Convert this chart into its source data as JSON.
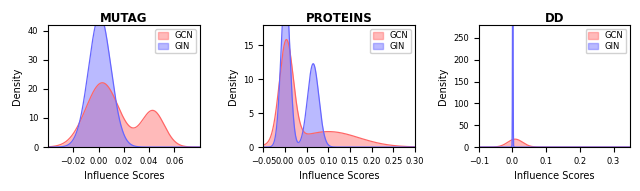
{
  "titles": [
    "MUTAG",
    "PROTEINS",
    "DD"
  ],
  "xlabel": "Influence Scores",
  "ylabel": "Density",
  "gcn_color": "#FF6666",
  "gin_color": "#6666FF",
  "gcn_alpha": 0.45,
  "gin_alpha": 0.45,
  "plots": [
    {
      "title": "MUTAG",
      "xlim": [
        -0.04,
        0.08
      ],
      "ylim": [
        0,
        42
      ],
      "xticks": [
        -0.02,
        0.0,
        0.02,
        0.04,
        0.06
      ],
      "gcn": {
        "means": [
          0.003,
          0.043
        ],
        "stds": [
          0.013,
          0.009
        ],
        "weights": [
          0.72,
          0.28
        ]
      },
      "gin": {
        "means": [
          0.001
        ],
        "stds": [
          0.0088
        ],
        "weights": [
          1.0
        ]
      }
    },
    {
      "title": "PROTEINS",
      "xlim": [
        -0.05,
        0.3
      ],
      "ylim": [
        0,
        18
      ],
      "xticks": [
        -0.05,
        0.0,
        0.05,
        0.1,
        0.15,
        0.2,
        0.25,
        0.3
      ],
      "gcn": {
        "means": [
          0.003,
          0.1
        ],
        "stds": [
          0.016,
          0.07
        ],
        "weights": [
          0.6,
          0.4
        ]
      },
      "gin": {
        "means": [
          0.001,
          0.065
        ],
        "stds": [
          0.01,
          0.013
        ],
        "weights": [
          0.6,
          0.4
        ]
      }
    },
    {
      "title": "DD",
      "xlim": [
        -0.1,
        0.35
      ],
      "ylim": [
        0,
        280
      ],
      "xticks": [
        -0.1,
        0.0,
        0.1,
        0.2,
        0.3
      ],
      "gcn": {
        "means": [
          0.008
        ],
        "stds": [
          0.022
        ],
        "weights": [
          1.0
        ]
      },
      "gin": {
        "means": [
          0.001
        ],
        "stds": [
          0.0008
        ],
        "weights": [
          1.0
        ]
      }
    }
  ]
}
